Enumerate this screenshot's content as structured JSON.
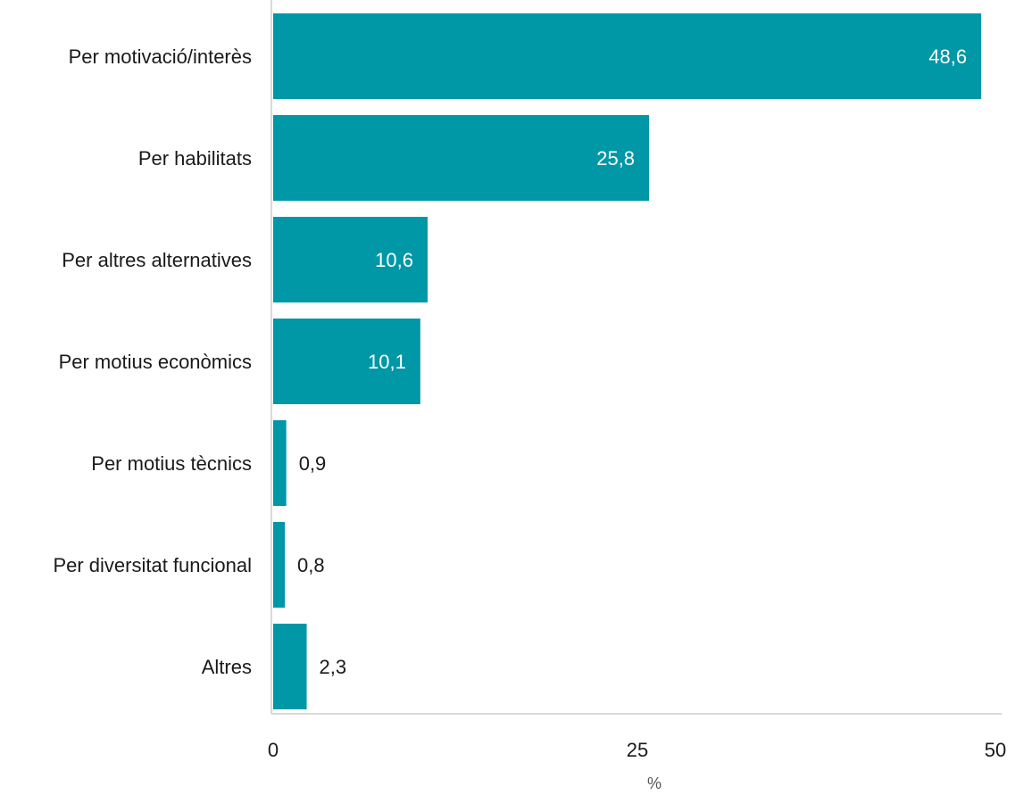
{
  "chart_data": {
    "type": "bar",
    "orientation": "horizontal",
    "categories": [
      "Per motivació/interès",
      "Per habilitats",
      "Per altres alternatives",
      "Per motius econòmics",
      "Per motius tècnics",
      "Per diversitat funcional",
      "Altres"
    ],
    "values": [
      48.6,
      25.8,
      10.6,
      10.1,
      0.9,
      0.8,
      2.3
    ],
    "value_labels": [
      "48,6",
      "25,8",
      "10,6",
      "10,1",
      "0,9",
      "0,8",
      "2,3"
    ],
    "xlim": [
      0,
      50
    ],
    "xticks": [
      0,
      25,
      50
    ],
    "xtick_labels": [
      "0",
      "25",
      "50"
    ],
    "xlabel": "%",
    "ylabel": "",
    "title": "",
    "grid": false,
    "bar_color": "#0097A7"
  }
}
